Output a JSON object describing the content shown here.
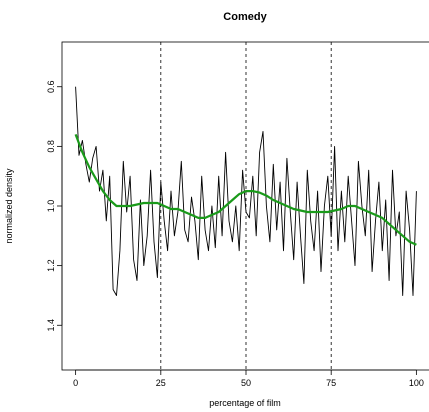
{
  "chart_data": {
    "type": "line",
    "title": "Comedy",
    "xlabel": "percentage of film",
    "ylabel": "normalized density",
    "xlim": [
      -4,
      104
    ],
    "ylim": [
      1.55,
      0.45
    ],
    "y_inverted": true,
    "xticks": [
      0,
      25,
      50,
      75,
      100
    ],
    "xtick_labels": [
      "0",
      "25",
      "50",
      "75",
      "100"
    ],
    "yticks": [
      0.6,
      0.8,
      1.0,
      1.2,
      1.4
    ],
    "ytick_labels": [
      "0.6",
      "0.8",
      "1.0",
      "1.2",
      "1.4"
    ],
    "vlines": [
      25,
      50,
      75
    ],
    "grid": false,
    "series": [
      {
        "color": "#000000",
        "style": "raw",
        "x": [
          0,
          1,
          2,
          3,
          4,
          5,
          6,
          7,
          8,
          9,
          10,
          11,
          12,
          13,
          14,
          15,
          16,
          17,
          18,
          19,
          20,
          21,
          22,
          23,
          24,
          25,
          26,
          27,
          28,
          29,
          30,
          31,
          32,
          33,
          34,
          35,
          36,
          37,
          38,
          39,
          40,
          41,
          42,
          43,
          44,
          45,
          46,
          47,
          48,
          49,
          50,
          51,
          52,
          53,
          54,
          55,
          56,
          57,
          58,
          59,
          60,
          61,
          62,
          63,
          64,
          65,
          66,
          67,
          68,
          69,
          70,
          71,
          72,
          73,
          74,
          75,
          76,
          77,
          78,
          79,
          80,
          81,
          82,
          83,
          84,
          85,
          86,
          87,
          88,
          89,
          90,
          91,
          92,
          93,
          94,
          95,
          96,
          97,
          98,
          99,
          100
        ],
        "y": [
          0.6,
          0.83,
          0.78,
          0.86,
          0.92,
          0.84,
          0.8,
          0.95,
          0.88,
          1.05,
          0.9,
          1.28,
          1.3,
          1.15,
          0.85,
          1.02,
          0.9,
          1.18,
          1.25,
          0.98,
          1.2,
          1.1,
          0.88,
          1.12,
          1.24,
          0.92,
          1.05,
          1.15,
          0.95,
          1.1,
          1.02,
          0.85,
          1.08,
          1.12,
          0.97,
          1.05,
          1.18,
          0.9,
          1.08,
          1.15,
          1.0,
          1.14,
          0.9,
          1.1,
          0.82,
          1.05,
          1.12,
          1.0,
          1.15,
          0.88,
          1.02,
          1.04,
          0.9,
          1.1,
          0.82,
          0.75,
          1.0,
          1.12,
          0.86,
          1.08,
          0.92,
          1.15,
          0.84,
          1.02,
          1.18,
          0.92,
          1.1,
          1.26,
          0.88,
          1.05,
          1.15,
          0.95,
          1.22,
          1.0,
          0.9,
          1.1,
          0.8,
          1.15,
          0.95,
          1.12,
          0.9,
          1.05,
          1.2,
          0.85,
          1.0,
          1.1,
          0.88,
          1.22,
          1.05,
          0.92,
          1.15,
          0.98,
          1.25,
          0.88,
          1.1,
          1.02,
          1.3,
          0.95,
          1.08,
          1.3,
          0.95
        ]
      },
      {
        "color": "#1a9a1a",
        "style": "smooth",
        "x": [
          0,
          2,
          4,
          6,
          8,
          10,
          12,
          14,
          16,
          18,
          20,
          22,
          24,
          26,
          28,
          30,
          32,
          34,
          36,
          38,
          40,
          42,
          44,
          46,
          48,
          50,
          52,
          54,
          56,
          58,
          60,
          62,
          64,
          66,
          68,
          70,
          72,
          74,
          76,
          78,
          80,
          82,
          84,
          86,
          88,
          90,
          92,
          94,
          96,
          98,
          100
        ],
        "y": [
          0.76,
          0.82,
          0.87,
          0.91,
          0.95,
          0.98,
          1.0,
          1.0,
          1.0,
          0.995,
          0.99,
          0.99,
          0.99,
          1.0,
          1.01,
          1.01,
          1.02,
          1.03,
          1.04,
          1.04,
          1.03,
          1.02,
          1.0,
          0.98,
          0.96,
          0.95,
          0.95,
          0.955,
          0.965,
          0.98,
          0.99,
          1.0,
          1.01,
          1.015,
          1.02,
          1.02,
          1.02,
          1.02,
          1.015,
          1.01,
          1.0,
          1.0,
          1.01,
          1.02,
          1.03,
          1.04,
          1.06,
          1.08,
          1.1,
          1.12,
          1.13
        ]
      }
    ]
  }
}
